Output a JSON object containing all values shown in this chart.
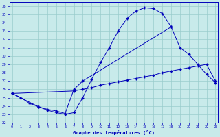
{
  "title": "Graphe des températures (°C)",
  "bg_color": "#c8eaea",
  "grid_color": "#99cccc",
  "line_color": "#0000bb",
  "curve1_x": [
    0,
    1,
    2,
    3,
    4,
    5,
    6,
    7,
    8,
    9,
    10,
    11,
    12,
    13,
    14,
    15,
    16,
    17,
    18
  ],
  "curve1_y": [
    25.5,
    25.0,
    24.3,
    23.9,
    23.5,
    23.2,
    23.0,
    23.2,
    25.0,
    27.2,
    29.2,
    31.0,
    33.0,
    34.5,
    35.4,
    35.8,
    35.7,
    35.1,
    33.5
  ],
  "curve2_x": [
    0,
    3,
    4,
    5,
    6,
    7,
    8,
    18,
    19,
    20,
    21,
    22,
    23
  ],
  "curve2_y": [
    25.5,
    23.9,
    23.6,
    23.4,
    23.1,
    26.0,
    27.0,
    33.5,
    31.0,
    30.2,
    29.0,
    27.8,
    26.8
  ],
  "curve3_x": [
    0,
    7,
    8,
    9,
    10,
    11,
    12,
    13,
    14,
    15,
    16,
    17,
    18,
    19,
    20,
    21,
    22,
    23
  ],
  "curve3_y": [
    25.5,
    25.8,
    26.0,
    26.2,
    26.5,
    26.7,
    26.9,
    27.1,
    27.3,
    27.5,
    27.7,
    28.0,
    28.2,
    28.4,
    28.6,
    28.8,
    29.0,
    27.0
  ],
  "ylim": [
    22.0,
    36.5
  ],
  "xlim": [
    -0.3,
    23.3
  ],
  "yticks": [
    22,
    23,
    24,
    25,
    26,
    27,
    28,
    29,
    30,
    31,
    32,
    33,
    34,
    35,
    36
  ],
  "xticks": [
    0,
    1,
    2,
    3,
    4,
    5,
    6,
    7,
    8,
    9,
    10,
    11,
    12,
    13,
    14,
    15,
    16,
    17,
    18,
    19,
    20,
    21,
    22,
    23
  ]
}
